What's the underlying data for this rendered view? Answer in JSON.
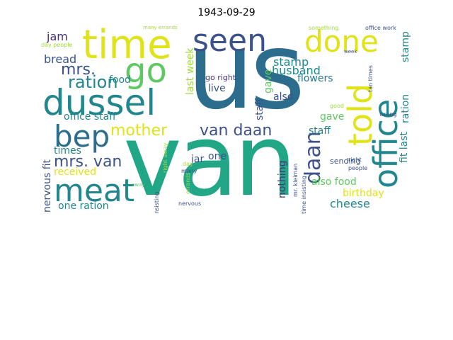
{
  "title": "1943-09-29",
  "words": {
    "us": "us",
    "van": "van",
    "time": "time",
    "seen": "seen",
    "done": "done",
    "dussel": "dussel",
    "go": "go",
    "office": "office",
    "told": "told",
    "bep": "bep",
    "mother": "mother",
    "van_daan": "van daan",
    "meat": "meat",
    "mrs_van": "mrs. van",
    "mrs": "mrs.",
    "ration": "ration",
    "bread": "bread",
    "jam": "jam",
    "stamp": "stamp",
    "stamp_v": "stamp",
    "ration_v": "ration",
    "husband": "husband",
    "flowers": "flowers",
    "live": "live",
    "also": "also",
    "staff": "staff",
    "gave": "gave",
    "staff_v": "staff",
    "office_staff": "office staff",
    "food": "food",
    "last_week": "last week",
    "times": "times",
    "received": "received",
    "one": "one",
    "jar": "jar",
    "nothing": "nothing",
    "daan": "daan",
    "also_food": "also food",
    "birthday": "birthday",
    "cheese": "cheese",
    "one_ration": "one ration",
    "nervous_fit": "nervous fit",
    "fit_last": "fit last",
    "gave_v": "gave",
    "go_right": "go right",
    "sending": "sending",
    "many_errands": "many errands",
    "day_people": "day people",
    "office_work": "office work",
    "something": "something",
    "week": "week",
    "people": "people",
    "right": "right",
    "wrong": "wrong",
    "many": "many",
    "day": "day",
    "nervous": "nervous",
    "insisting": "insisting",
    "time_insisting": "time insisting",
    "tan_times": "tan times",
    "errands": "errands",
    "away": "away",
    "right_away": "right away",
    "mr_kleiman": "mr. kleiman",
    "good": "good"
  }
}
